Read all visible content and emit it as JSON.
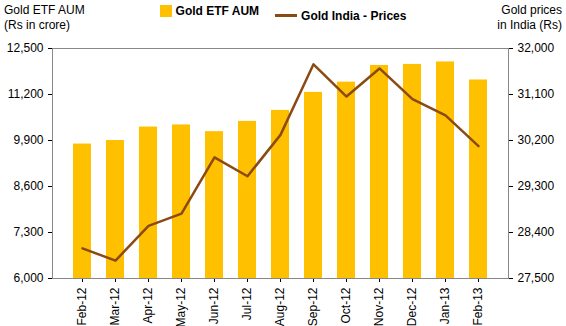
{
  "chart_data": {
    "type": "bar",
    "ylabel": "Gold ETF AUM\n(Rs in crore)",
    "y2label": "Gold prices\nin India (Rs)",
    "categories": [
      "Feb-12",
      "Mar-12",
      "Apr-12",
      "May-12",
      "Jun-12",
      "Jul-12",
      "Aug-12",
      "Sep-12",
      "Oct-12",
      "Nov-12",
      "Dec-12",
      "Jan-13",
      "Feb-13"
    ],
    "series": [
      {
        "name": "Gold ETF AUM",
        "type": "bar",
        "color": "#FFC000",
        "values": [
          9800,
          9900,
          10280,
          10340,
          10150,
          10440,
          10750,
          11260,
          11550,
          12020,
          12050,
          12120,
          11610
        ]
      },
      {
        "name": "Gold India - Prices",
        "type": "line",
        "axis": "y2",
        "color": "#8B4A14",
        "values": [
          28090,
          27850,
          28530,
          28770,
          29870,
          29500,
          30310,
          31690,
          31060,
          31610,
          31010,
          30690,
          30090
        ]
      }
    ],
    "ylim": [
      6000,
      12500
    ],
    "yticks": [
      {
        "value": 6000,
        "label": "6,000"
      },
      {
        "value": 7300,
        "label": "7,300"
      },
      {
        "value": 8600,
        "label": "8,600"
      },
      {
        "value": 9900,
        "label": "9,900"
      },
      {
        "value": 11200,
        "label": "11,200"
      },
      {
        "value": 12500,
        "label": "12,500"
      }
    ],
    "y2lim": [
      27500,
      32000
    ],
    "y2ticks": [
      {
        "value": 27500,
        "label": "27,500"
      },
      {
        "value": 28400,
        "label": "28,400"
      },
      {
        "value": 29300,
        "label": "29,300"
      },
      {
        "value": 30200,
        "label": "30,200"
      },
      {
        "value": 31100,
        "label": "31,100"
      },
      {
        "value": 32000,
        "label": "32,000"
      }
    ],
    "grid": false,
    "legend": "top"
  }
}
